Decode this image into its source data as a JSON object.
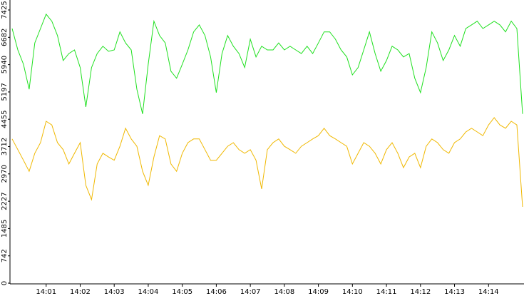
{
  "chart_data": {
    "type": "line",
    "categories": [
      null,
      null,
      null,
      null,
      null,
      null,
      "14:01",
      null,
      null,
      null,
      null,
      null,
      "14:02",
      null,
      null,
      null,
      null,
      null,
      "14:03",
      null,
      null,
      null,
      null,
      null,
      "14:04",
      null,
      null,
      null,
      null,
      null,
      "14:05",
      null,
      null,
      null,
      null,
      null,
      "14:06",
      null,
      null,
      null,
      null,
      null,
      "14:07",
      null,
      null,
      null,
      null,
      null,
      "14:08",
      null,
      null,
      null,
      null,
      null,
      "14:09",
      null,
      null,
      null,
      null,
      null,
      "14:10",
      null,
      null,
      null,
      null,
      null,
      "14:11",
      null,
      null,
      null,
      null,
      null,
      "14:12",
      null,
      null,
      null,
      null,
      null,
      "14:13",
      null,
      null,
      null,
      null,
      null,
      "14:14",
      null,
      null,
      null,
      null,
      null,
      null
    ],
    "series": [
      {
        "color": "#1ee01e",
        "values": [
          6920,
          6340,
          5950,
          5270,
          6530,
          6920,
          7310,
          7120,
          6730,
          6050,
          6240,
          6340,
          5860,
          4790,
          5860,
          6240,
          6440,
          6300,
          6340,
          6830,
          6530,
          6340,
          5270,
          4600,
          5950,
          7120,
          6730,
          6530,
          5760,
          5570,
          5950,
          6340,
          6830,
          7020,
          6730,
          6150,
          5180,
          6240,
          6730,
          6440,
          6240,
          5860,
          6630,
          6150,
          6440,
          6340,
          6340,
          6530,
          6340,
          6440,
          6340,
          6240,
          6440,
          6240,
          6530,
          6830,
          6830,
          6630,
          6340,
          6150,
          5660,
          5860,
          6340,
          6830,
          6240,
          5760,
          6050,
          6440,
          6340,
          6150,
          6240,
          5570,
          5180,
          5860,
          6830,
          6530,
          6050,
          6340,
          6730,
          6440,
          6920,
          7020,
          7120,
          6920,
          7020,
          7120,
          7020,
          6830,
          7120,
          6920,
          4600
        ]
      },
      {
        "color": "#f0b800",
        "values": [
          3920,
          3630,
          3340,
          3040,
          3530,
          3820,
          4400,
          4300,
          3820,
          3630,
          3240,
          3530,
          3820,
          2660,
          2270,
          3240,
          3530,
          3430,
          3340,
          3720,
          4210,
          3920,
          3720,
          3040,
          2660,
          3430,
          4010,
          3920,
          3240,
          3040,
          3530,
          3820,
          3920,
          3920,
          3630,
          3340,
          3340,
          3530,
          3720,
          3820,
          3630,
          3530,
          3630,
          3340,
          2560,
          3630,
          3820,
          3920,
          3720,
          3630,
          3530,
          3720,
          3820,
          3920,
          4010,
          4210,
          4010,
          3920,
          3820,
          3720,
          3240,
          3530,
          3820,
          3720,
          3530,
          3240,
          3630,
          3820,
          3530,
          3140,
          3430,
          3530,
          3140,
          3720,
          3920,
          3820,
          3630,
          3530,
          3820,
          3920,
          4110,
          4210,
          4110,
          4010,
          4300,
          4500,
          4300,
          4210,
          4400,
          4300,
          2075
        ]
      }
    ],
    "ylim": [
      0,
      7425
    ],
    "yticks": [
      0,
      742,
      1485,
      2227,
      2970,
      3712,
      4455,
      5197,
      5940,
      6682,
      7425
    ]
  }
}
